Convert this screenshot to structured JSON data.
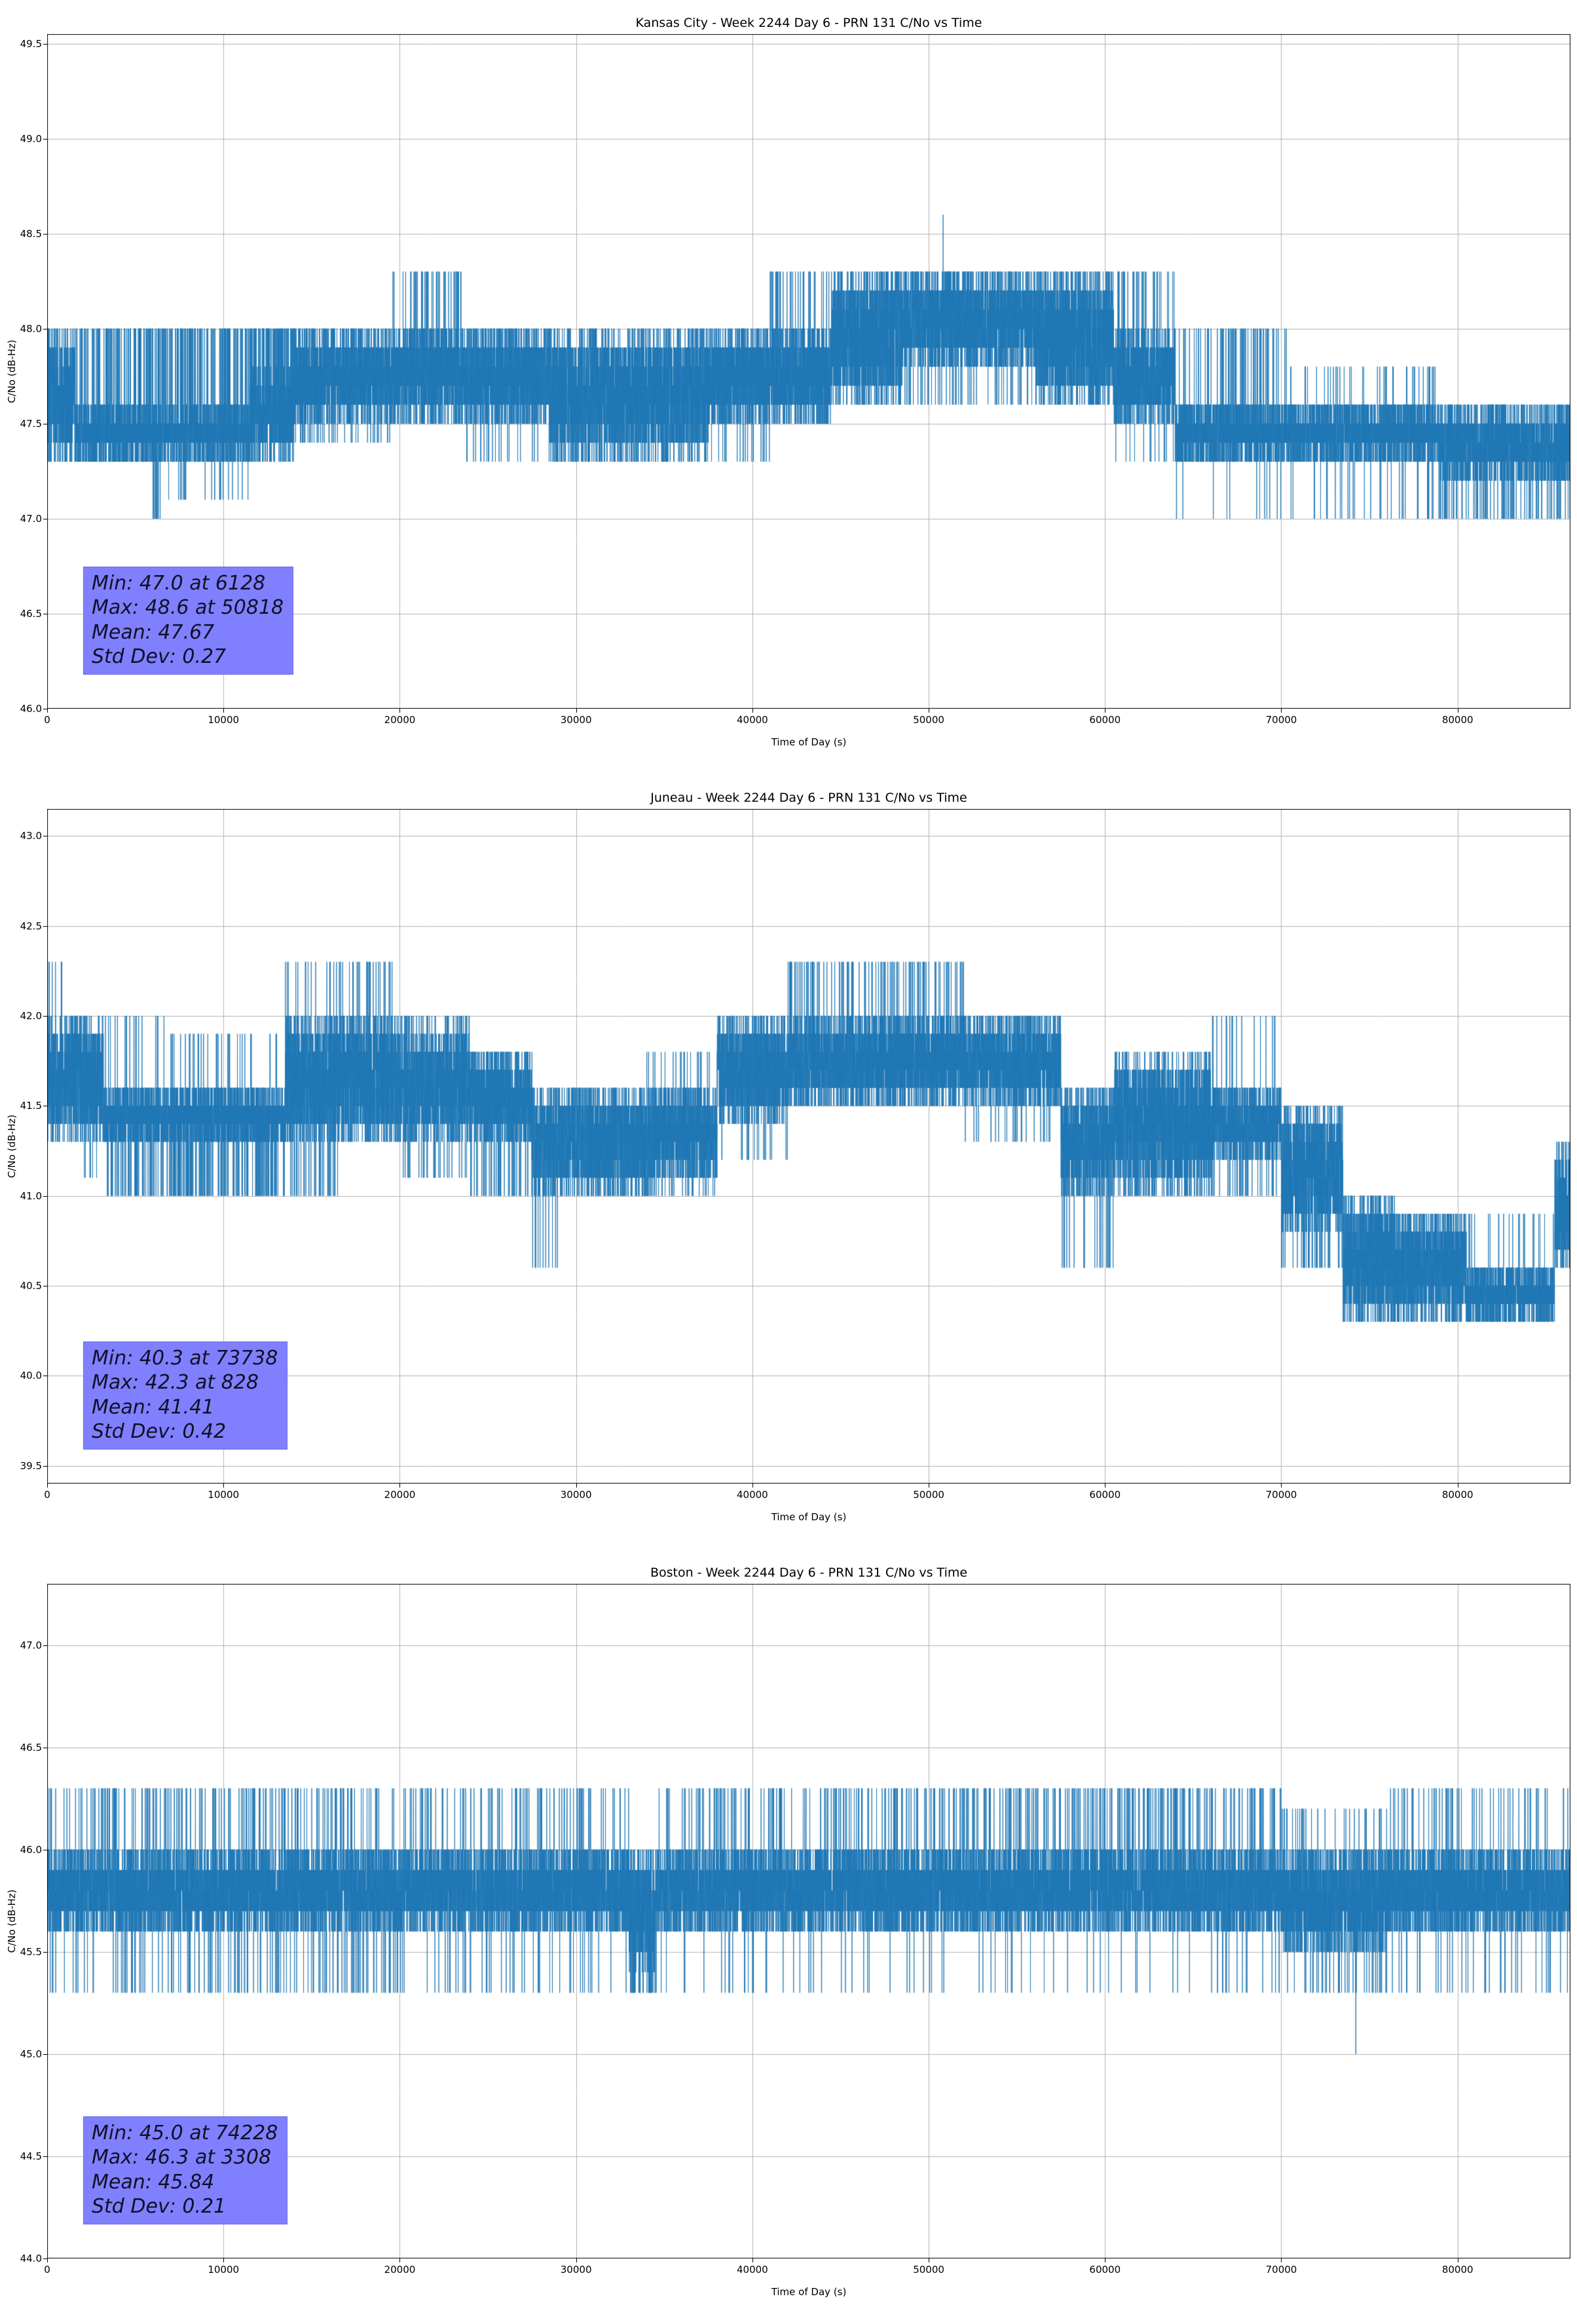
{
  "page": {
    "background": "#ffffff"
  },
  "colors": {
    "line": "#1f77b4",
    "grid": "#b0b0b0",
    "spine": "#000000",
    "annotation_bg": "#8080ff"
  },
  "chart_data": [
    {
      "type": "line",
      "title": "Kansas City - Week 2244 Day 6 - PRN 131 C/No vs Time",
      "xlabel": "Time of Day (s)",
      "ylabel": "C/No (dB-Hz)",
      "xlim": [
        0,
        86400
      ],
      "ylim": [
        46.0,
        49.55
      ],
      "xticks": [
        0,
        10000,
        20000,
        30000,
        40000,
        50000,
        60000,
        70000,
        80000
      ],
      "xtick_labels": [
        "0",
        "10000",
        "20000",
        "30000",
        "40000",
        "50000",
        "60000",
        "70000",
        "80000"
      ],
      "yticks": [
        46.0,
        46.5,
        47.0,
        47.5,
        48.0,
        48.5,
        49.0,
        49.5
      ],
      "ytick_labels": [
        "46.0",
        "46.5",
        "47.0",
        "47.5",
        "48.0",
        "48.5",
        "49.0",
        "49.5"
      ],
      "grid": true,
      "legend": "none",
      "line_color": "#1f77b4",
      "quantization_db": 0.1,
      "sample_step_s": 4,
      "stats": {
        "min": 47.0,
        "min_t": 6128,
        "max": 48.6,
        "max_t": 50818,
        "mean": 47.67,
        "std": 0.27,
        "min_label": "Min: 47.0 at 6128",
        "max_label": "Max: 48.6 at 50818",
        "mean_label": "Mean: 47.67",
        "std_label": "Std Dev: 0.27"
      },
      "annotation_bg": "#8080ff",
      "segments": [
        [
          0,
          1600,
          47.3,
          48.0,
          null,
          0,
          null,
          0
        ],
        [
          1600,
          6000,
          47.3,
          47.6,
          48.0,
          0.1,
          null,
          0
        ],
        [
          6000,
          6500,
          47.3,
          47.6,
          48.0,
          0.06,
          47.0,
          0.1
        ],
        [
          6500,
          11500,
          47.3,
          47.6,
          48.0,
          0.1,
          47.1,
          0.01
        ],
        [
          11500,
          14000,
          47.3,
          47.8,
          48.0,
          0.15,
          null,
          0
        ],
        [
          14000,
          19500,
          47.5,
          48.0,
          null,
          0,
          47.4,
          0.03
        ],
        [
          19500,
          23500,
          47.5,
          48.0,
          48.3,
          0.035,
          null,
          0
        ],
        [
          23500,
          28500,
          47.5,
          48.0,
          null,
          0,
          47.3,
          0.02
        ],
        [
          28500,
          37500,
          47.3,
          48.0,
          null,
          0,
          null,
          0
        ],
        [
          37500,
          41000,
          47.5,
          48.0,
          null,
          0,
          47.3,
          0.02
        ],
        [
          41000,
          44500,
          47.5,
          48.0,
          48.3,
          0.04,
          null,
          0
        ],
        [
          44500,
          48500,
          47.6,
          48.3,
          null,
          0,
          null,
          0
        ],
        [
          48500,
          56000,
          47.8,
          48.3,
          null,
          0,
          47.6,
          0.03
        ],
        [
          56000,
          60500,
          47.6,
          48.3,
          null,
          0,
          null,
          0
        ],
        [
          60500,
          64000,
          47.5,
          48.0,
          48.3,
          0.05,
          47.3,
          0.02
        ],
        [
          64000,
          70500,
          47.3,
          47.6,
          48.0,
          0.05,
          47.0,
          0.008
        ],
        [
          70500,
          79000,
          47.3,
          47.6,
          47.8,
          0.02,
          47.0,
          0.015
        ],
        [
          79000,
          86400,
          47.2,
          47.6,
          null,
          0,
          47.0,
          0.05
        ]
      ],
      "events": [
        [
          6128,
          47.0
        ],
        [
          50818,
          48.6
        ]
      ]
    },
    {
      "type": "line",
      "title": "Juneau - Week 2244 Day 6 - PRN 131 C/No vs Time",
      "xlabel": "Time of Day (s)",
      "ylabel": "C/No (dB-Hz)",
      "xlim": [
        0,
        86400
      ],
      "ylim": [
        39.4,
        43.15
      ],
      "xticks": [
        0,
        10000,
        20000,
        30000,
        40000,
        50000,
        60000,
        70000,
        80000
      ],
      "xtick_labels": [
        "0",
        "10000",
        "20000",
        "30000",
        "40000",
        "50000",
        "60000",
        "70000",
        "80000"
      ],
      "yticks": [
        39.5,
        40.0,
        40.5,
        41.0,
        41.5,
        42.0,
        42.5,
        43.0
      ],
      "ytick_labels": [
        "39.5",
        "40.0",
        "40.5",
        "41.0",
        "41.5",
        "42.0",
        "42.5",
        "43.0"
      ],
      "grid": true,
      "legend": "none",
      "line_color": "#1f77b4",
      "quantization_db": 0.1,
      "sample_step_s": 4,
      "stats": {
        "min": 40.3,
        "min_t": 73738,
        "max": 42.3,
        "max_t": 828,
        "mean": 41.41,
        "std": 0.42,
        "min_label": "Min: 40.3 at 73738",
        "max_label": "Max: 42.3 at 828",
        "mean_label": "Mean: 41.41",
        "std_label": "Std Dev: 0.42"
      },
      "annotation_bg": "#8080ff",
      "segments": [
        [
          0,
          1000,
          41.3,
          42.0,
          42.3,
          0.03,
          null,
          0
        ],
        [
          1000,
          3200,
          41.3,
          42.0,
          null,
          0,
          41.1,
          0.02
        ],
        [
          3200,
          7000,
          41.3,
          41.6,
          42.0,
          0.02,
          41.0,
          0.05
        ],
        [
          7000,
          13500,
          41.3,
          41.6,
          41.9,
          0.02,
          41.0,
          0.08
        ],
        [
          13500,
          16500,
          41.3,
          42.0,
          42.3,
          0.02,
          41.0,
          0.03
        ],
        [
          16500,
          20000,
          41.3,
          42.0,
          42.3,
          0.035,
          null,
          0
        ],
        [
          20000,
          24000,
          41.3,
          41.9,
          42.0,
          0.05,
          41.1,
          0.02
        ],
        [
          24000,
          27500,
          41.3,
          41.8,
          null,
          0,
          41.0,
          0.04
        ],
        [
          27500,
          29000,
          41.0,
          41.6,
          null,
          0,
          40.6,
          0.03
        ],
        [
          29000,
          34000,
          41.0,
          41.6,
          null,
          0,
          null,
          0
        ],
        [
          34000,
          38000,
          41.1,
          41.6,
          41.8,
          0.02,
          41.0,
          0.03
        ],
        [
          38000,
          42000,
          41.4,
          42.0,
          null,
          0,
          41.2,
          0.02
        ],
        [
          42000,
          52000,
          41.5,
          42.0,
          42.3,
          0.04,
          null,
          0
        ],
        [
          52000,
          57500,
          41.5,
          42.0,
          null,
          0,
          41.3,
          0.02
        ],
        [
          57500,
          60500,
          41.0,
          41.6,
          null,
          0,
          40.6,
          0.02
        ],
        [
          60500,
          66000,
          41.0,
          41.8,
          null,
          0,
          null,
          0
        ],
        [
          66000,
          70000,
          41.2,
          41.6,
          42.0,
          0.02,
          41.0,
          0.03
        ],
        [
          70000,
          73500,
          40.8,
          41.5,
          null,
          0,
          40.6,
          0.04
        ],
        [
          73500,
          76500,
          40.3,
          41.0,
          null,
          0,
          null,
          0
        ],
        [
          76500,
          80500,
          40.3,
          40.9,
          null,
          0,
          null,
          0
        ],
        [
          80500,
          85500,
          40.3,
          40.6,
          40.9,
          0.02,
          null,
          0
        ],
        [
          85500,
          86400,
          40.6,
          41.3,
          null,
          0,
          null,
          0
        ]
      ],
      "events": [
        [
          828,
          42.3
        ],
        [
          73738,
          40.3
        ]
      ]
    },
    {
      "type": "line",
      "title": "Boston - Week 2244 Day 6 - PRN 131 C/No vs Time",
      "xlabel": "Time of Day (s)",
      "ylabel": "C/No (dB-Hz)",
      "xlim": [
        0,
        86400
      ],
      "ylim": [
        44.0,
        47.3
      ],
      "xticks": [
        0,
        10000,
        20000,
        30000,
        40000,
        50000,
        60000,
        70000,
        80000
      ],
      "xtick_labels": [
        "0",
        "10000",
        "20000",
        "30000",
        "40000",
        "50000",
        "60000",
        "70000",
        "80000"
      ],
      "yticks": [
        44.0,
        44.5,
        45.0,
        45.5,
        46.0,
        46.5,
        47.0
      ],
      "ytick_labels": [
        "44.0",
        "44.5",
        "45.0",
        "45.5",
        "46.0",
        "46.5",
        "47.0"
      ],
      "grid": true,
      "legend": "none",
      "line_color": "#1f77b4",
      "quantization_db": 0.1,
      "sample_step_s": 4,
      "stats": {
        "min": 45.0,
        "min_t": 74228,
        "max": 46.3,
        "max_t": 3308,
        "mean": 45.84,
        "std": 0.21,
        "min_label": "Min: 45.0 at 74228",
        "max_label": "Max: 46.3 at 3308",
        "mean_label": "Mean: 45.84",
        "std_label": "Std Dev: 0.21"
      },
      "annotation_bg": "#8080ff",
      "segments": [
        [
          0,
          3000,
          45.6,
          46.0,
          46.3,
          0.03,
          45.3,
          0.02
        ],
        [
          3000,
          3600,
          45.6,
          46.0,
          46.3,
          0.08,
          null,
          0
        ],
        [
          3600,
          12000,
          45.6,
          46.0,
          46.3,
          0.035,
          45.3,
          0.025
        ],
        [
          12000,
          20000,
          45.6,
          46.0,
          46.3,
          0.03,
          45.3,
          0.03
        ],
        [
          20000,
          33000,
          45.6,
          46.0,
          46.3,
          0.03,
          45.3,
          0.015
        ],
        [
          33000,
          34500,
          45.4,
          46.0,
          null,
          0,
          45.3,
          0.1
        ],
        [
          34500,
          46000,
          45.6,
          46.0,
          46.3,
          0.03,
          45.3,
          0.01
        ],
        [
          46000,
          58000,
          45.6,
          46.0,
          46.3,
          0.04,
          45.3,
          0.01
        ],
        [
          58000,
          66000,
          45.6,
          46.0,
          46.3,
          0.05,
          45.3,
          0.01
        ],
        [
          66000,
          70000,
          45.6,
          46.0,
          46.3,
          0.035,
          45.3,
          0.02
        ],
        [
          70000,
          76000,
          45.5,
          46.0,
          46.2,
          0.02,
          45.3,
          0.03
        ],
        [
          76000,
          86400,
          45.6,
          46.0,
          46.3,
          0.03,
          45.3,
          0.02
        ]
      ],
      "events": [
        [
          3308,
          46.3
        ],
        [
          74228,
          45.0
        ]
      ]
    }
  ]
}
